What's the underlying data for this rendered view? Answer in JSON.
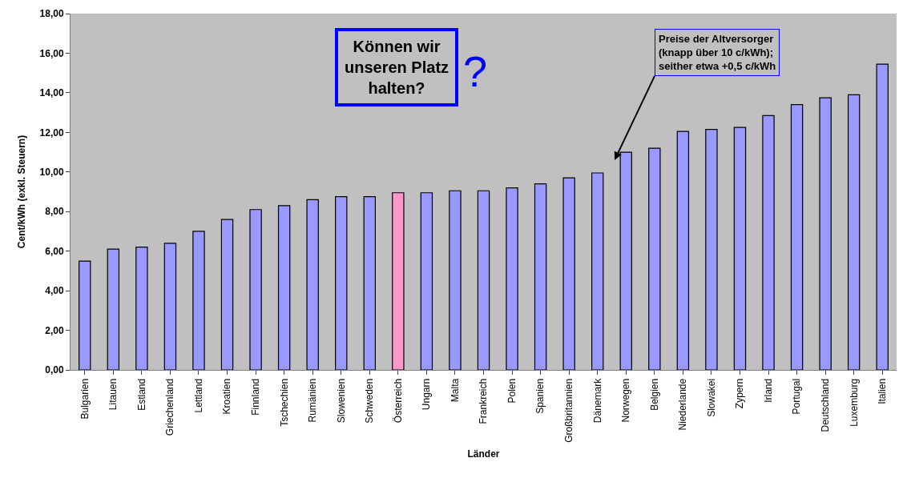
{
  "chart_data": {
    "type": "bar",
    "xlabel": "Länder",
    "ylabel": "Cent/kWh (exkl. Steuern)",
    "categories": [
      "Bulgarien",
      "Litauen",
      "Estland",
      "Griechenland",
      "Lettland",
      "Kroatien",
      "Finnland",
      "Tschechien",
      "Rumänien",
      "Slowenien",
      "Schweden",
      "Österreich",
      "Ungarn",
      "Malta",
      "Frankreich",
      "Polen",
      "Spanien",
      "Großbritannien",
      "Dänemark",
      "Norwegen",
      "Belgien",
      "Niederlande",
      "Slowakei",
      "Zypern",
      "Irland",
      "Portugal",
      "Deutschland",
      "Luxemburg",
      "Italien"
    ],
    "values": [
      5.5,
      6.1,
      6.2,
      6.4,
      7.0,
      7.6,
      8.1,
      8.3,
      8.6,
      8.75,
      8.75,
      8.95,
      8.95,
      9.05,
      9.05,
      9.2,
      9.4,
      9.7,
      9.95,
      11.0,
      11.2,
      12.05,
      12.15,
      12.25,
      12.85,
      13.4,
      13.75,
      13.9,
      15.45
    ],
    "colors": [
      "#9999ff",
      "#9999ff",
      "#9999ff",
      "#9999ff",
      "#9999ff",
      "#9999ff",
      "#9999ff",
      "#9999ff",
      "#9999ff",
      "#9999ff",
      "#9999ff",
      "#ff99cc",
      "#9999ff",
      "#9999ff",
      "#9999ff",
      "#9999ff",
      "#9999ff",
      "#9999ff",
      "#9999ff",
      "#9999ff",
      "#9999ff",
      "#9999ff",
      "#9999ff",
      "#9999ff",
      "#9999ff",
      "#9999ff",
      "#9999ff",
      "#9999ff",
      "#9999ff"
    ],
    "ylim": [
      0,
      18
    ],
    "yticks": [
      {
        "value": 0,
        "label": "0,00"
      },
      {
        "value": 2,
        "label": "2,00"
      },
      {
        "value": 4,
        "label": "4,00"
      },
      {
        "value": 6,
        "label": "6,00"
      },
      {
        "value": 8,
        "label": "8,00"
      },
      {
        "value": 10,
        "label": "10,00"
      },
      {
        "value": 12,
        "label": "12,00"
      },
      {
        "value": 14,
        "label": "14,00"
      },
      {
        "value": 16,
        "label": "16,00"
      },
      {
        "value": 18,
        "label": "18,00"
      }
    ],
    "grid": false,
    "legend": false,
    "annotations": [
      "Können wir\nunseren Platz\nhalten?",
      "?",
      "Preise der Altversorger\n(knapp über 10 c/kWh);\nseither etwa +0,5 c/kWh"
    ]
  }
}
